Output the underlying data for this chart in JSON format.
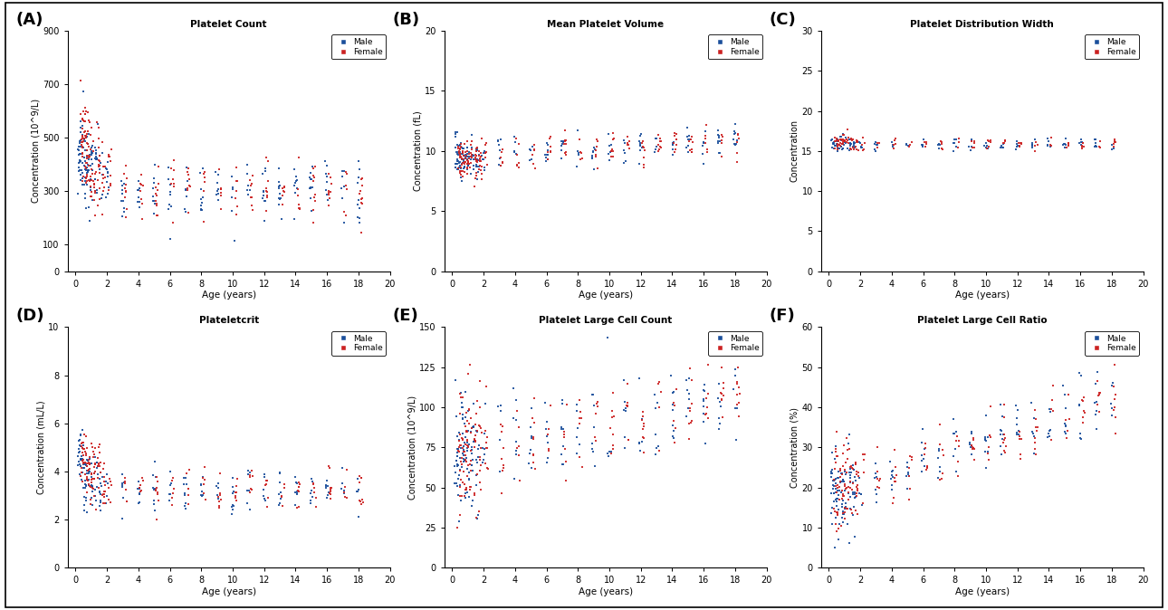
{
  "panels": [
    {
      "label": "(A)",
      "title": "Platelet Count",
      "ylabel": "Concentration (10^9/L)",
      "ylim": [
        0,
        900
      ],
      "yticks": [
        0,
        100,
        300,
        500,
        700,
        900
      ],
      "xlim": [
        -0.5,
        20
      ],
      "xticks": [
        0,
        2,
        4,
        6,
        8,
        10,
        12,
        14,
        16,
        18,
        20
      ]
    },
    {
      "label": "(B)",
      "title": "Mean Platelet Volume",
      "ylabel": "Concentration (fL)",
      "ylim": [
        0,
        20
      ],
      "yticks": [
        0,
        5,
        10,
        15,
        20
      ],
      "xlim": [
        -0.5,
        20
      ],
      "xticks": [
        0,
        2,
        4,
        6,
        8,
        10,
        12,
        14,
        16,
        18,
        20
      ]
    },
    {
      "label": "(C)",
      "title": "Platelet Distribution Width",
      "ylabel": "Concentration",
      "ylim": [
        0,
        30
      ],
      "yticks": [
        0,
        5,
        10,
        15,
        20,
        25,
        30
      ],
      "xlim": [
        -0.5,
        20
      ],
      "xticks": [
        0,
        2,
        4,
        6,
        8,
        10,
        12,
        14,
        16,
        18,
        20
      ]
    },
    {
      "label": "(D)",
      "title": "Plateletcrit",
      "ylabel": "Concentration (mL/L)",
      "ylim": [
        0,
        10
      ],
      "yticks": [
        0,
        2,
        4,
        6,
        8,
        10
      ],
      "xlim": [
        -0.5,
        20
      ],
      "xticks": [
        0,
        2,
        4,
        6,
        8,
        10,
        12,
        14,
        16,
        18,
        20
      ]
    },
    {
      "label": "(E)",
      "title": "Platelet Large Cell Count",
      "ylabel": "Concentration (10^9/L)",
      "ylim": [
        0,
        150
      ],
      "yticks": [
        0,
        25,
        50,
        75,
        100,
        125,
        150
      ],
      "xlim": [
        -0.5,
        20
      ],
      "xticks": [
        0,
        2,
        4,
        6,
        8,
        10,
        12,
        14,
        16,
        18,
        20
      ]
    },
    {
      "label": "(F)",
      "title": "Platelet Large Cell Ratio",
      "ylabel": "Concentration (%)",
      "ylim": [
        0,
        60
      ],
      "yticks": [
        0,
        10,
        20,
        30,
        40,
        50,
        60
      ],
      "xlim": [
        -0.5,
        20
      ],
      "xticks": [
        0,
        2,
        4,
        6,
        8,
        10,
        12,
        14,
        16,
        18,
        20
      ]
    }
  ],
  "male_color": "#1B4F9B",
  "female_color": "#CC2222",
  "point_size": 3,
  "alpha": 0.9,
  "background_color": "#ffffff"
}
